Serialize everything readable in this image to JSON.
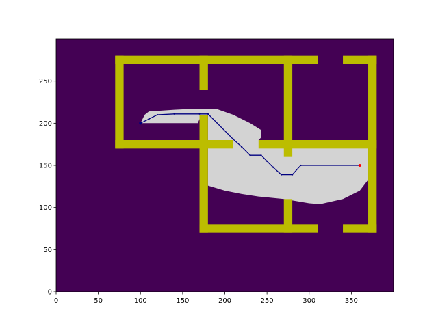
{
  "chart_data": {
    "type": "heatmap",
    "title": "",
    "xlabel": "",
    "ylabel": "",
    "xlim": [
      0,
      400
    ],
    "ylim": [
      0,
      300
    ],
    "xticks": [
      0,
      50,
      100,
      150,
      200,
      250,
      300,
      350
    ],
    "yticks": [
      0,
      50,
      100,
      150,
      200,
      250
    ],
    "grid": false,
    "colors": {
      "background": "#440154",
      "wall": "#bcbd00",
      "explored": "#d3d3d3",
      "path": "#000080",
      "start": "#000080",
      "goal": "#ff0000"
    },
    "walls": [
      {
        "x": [
          70,
          310
        ],
        "y": [
          270,
          280
        ]
      },
      {
        "x": [
          340,
          380
        ],
        "y": [
          270,
          280
        ]
      },
      {
        "x": [
          70,
          80
        ],
        "y": [
          170,
          280
        ]
      },
      {
        "x": [
          170,
          180
        ],
        "y": [
          240,
          280
        ]
      },
      {
        "x": [
          270,
          280
        ],
        "y": [
          160,
          280
        ]
      },
      {
        "x": [
          370,
          380
        ],
        "y": [
          70,
          280
        ]
      },
      {
        "x": [
          70,
          210
        ],
        "y": [
          170,
          180
        ]
      },
      {
        "x": [
          240,
          380
        ],
        "y": [
          170,
          180
        ]
      },
      {
        "x": [
          170,
          180
        ],
        "y": [
          70,
          210
        ]
      },
      {
        "x": [
          270,
          280
        ],
        "y": [
          70,
          110
        ]
      },
      {
        "x": [
          170,
          310
        ],
        "y": [
          70,
          80
        ]
      },
      {
        "x": [
          340,
          380
        ],
        "y": [
          70,
          80
        ]
      }
    ],
    "explored_region": [
      [
        100,
        200
      ],
      [
        105,
        210
      ],
      [
        110,
        214
      ],
      [
        140,
        216
      ],
      [
        160,
        217
      ],
      [
        190,
        217
      ],
      [
        210,
        210
      ],
      [
        230,
        200
      ],
      [
        243,
        192
      ],
      [
        243,
        183
      ],
      [
        240,
        180
      ],
      [
        270,
        180
      ],
      [
        280,
        180
      ],
      [
        370,
        180
      ],
      [
        370,
        133
      ],
      [
        360,
        120
      ],
      [
        340,
        110
      ],
      [
        313,
        104
      ],
      [
        300,
        105
      ],
      [
        270,
        110
      ],
      [
        240,
        113
      ],
      [
        220,
        116
      ],
      [
        200,
        120
      ],
      [
        180,
        126
      ],
      [
        180,
        210
      ],
      [
        170,
        205
      ],
      [
        168,
        200
      ],
      [
        100,
        200
      ]
    ],
    "path": [
      [
        100,
        200
      ],
      [
        110,
        205
      ],
      [
        120,
        210
      ],
      [
        140,
        211
      ],
      [
        170,
        211
      ],
      [
        180,
        211
      ],
      [
        190,
        201
      ],
      [
        210,
        181
      ],
      [
        220,
        172
      ],
      [
        230,
        162
      ],
      [
        243,
        162
      ],
      [
        250,
        155
      ],
      [
        257,
        148
      ],
      [
        267,
        139
      ],
      [
        280,
        139
      ],
      [
        290,
        150
      ],
      [
        360,
        150
      ]
    ],
    "start": [
      100,
      200
    ],
    "goal": [
      360,
      150
    ]
  }
}
